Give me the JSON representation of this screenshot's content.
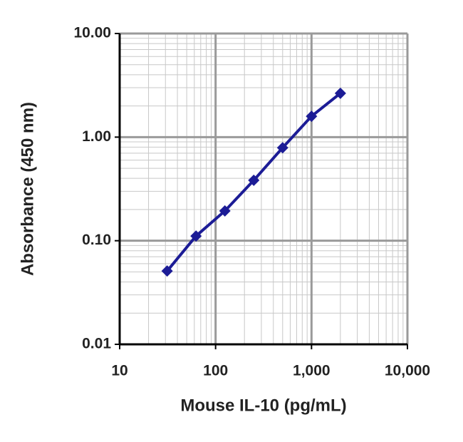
{
  "chart_data": {
    "type": "line",
    "x_label": "Mouse IL-10 (pg/mL)",
    "y_label": "Absorbance (450 nm)",
    "x": [
      31.25,
      62.5,
      125,
      250,
      500,
      1000,
      2000
    ],
    "series": [
      {
        "color": "#1c1c96",
        "values": [
          0.051,
          0.111,
          0.194,
          0.383,
          0.79,
          1.59,
          2.65
        ]
      }
    ],
    "xlim": [
      10,
      10000
    ],
    "ylim": [
      0.01,
      10
    ],
    "xticks": [
      10,
      100,
      {
        "value": 1000,
        "label": "1,000"
      },
      {
        "value": 10000,
        "label": "10,000"
      }
    ],
    "yticks": [
      {
        "value": 0.01,
        "label": "0.01"
      },
      {
        "value": 0.1,
        "label": "0.10"
      },
      {
        "value": 1,
        "label": "1.00"
      },
      {
        "value": 10,
        "label": "10.00"
      }
    ],
    "x_log": true,
    "y_log": true,
    "grid": true,
    "minor_grid": true
  }
}
